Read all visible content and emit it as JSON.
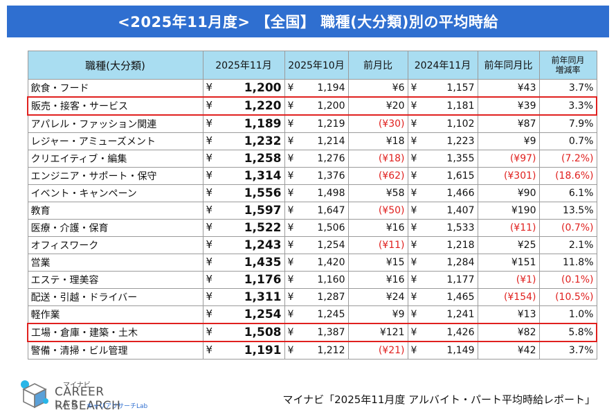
{
  "title": "<2025年11月度> 【全国】 職種(大分類)別の平均時給",
  "headers": {
    "category": "職種(大分類)",
    "nov2025": "2025年11月",
    "oct2025": "2025年10月",
    "mom": "前月比",
    "nov2024": "2024年11月",
    "yoy": "前年同月比",
    "yoy_rate_line1": "前年同月",
    "yoy_rate_line2": "増減率"
  },
  "yen_symbol": "¥",
  "rows": [
    {
      "category": "飲食・フード",
      "nov2025": "1,200",
      "oct2025": "1,194",
      "mom": "¥6",
      "mom_neg": false,
      "nov2024": "1,157",
      "yoy": "¥43",
      "yoy_neg": false,
      "rate": "3.7%",
      "rate_neg": false,
      "highlight": false
    },
    {
      "category": "販売・接客・サービス",
      "nov2025": "1,220",
      "oct2025": "1,200",
      "mom": "¥20",
      "mom_neg": false,
      "nov2024": "1,181",
      "yoy": "¥39",
      "yoy_neg": false,
      "rate": "3.3%",
      "rate_neg": false,
      "highlight": true
    },
    {
      "category": "アパレル・ファッション関連",
      "nov2025": "1,189",
      "oct2025": "1,219",
      "mom": "(¥30)",
      "mom_neg": true,
      "nov2024": "1,102",
      "yoy": "¥87",
      "yoy_neg": false,
      "rate": "7.9%",
      "rate_neg": false,
      "highlight": false
    },
    {
      "category": "レジャー・アミューズメント",
      "nov2025": "1,232",
      "oct2025": "1,214",
      "mom": "¥18",
      "mom_neg": false,
      "nov2024": "1,223",
      "yoy": "¥9",
      "yoy_neg": false,
      "rate": "0.7%",
      "rate_neg": false,
      "highlight": false
    },
    {
      "category": "クリエイティブ・編集",
      "nov2025": "1,258",
      "oct2025": "1,276",
      "mom": "(¥18)",
      "mom_neg": true,
      "nov2024": "1,355",
      "yoy": "(¥97)",
      "yoy_neg": true,
      "rate": "(7.2%)",
      "rate_neg": true,
      "highlight": false
    },
    {
      "category": "エンジニア・サポート・保守",
      "nov2025": "1,314",
      "oct2025": "1,376",
      "mom": "(¥62)",
      "mom_neg": true,
      "nov2024": "1,615",
      "yoy": "(¥301)",
      "yoy_neg": true,
      "rate": "(18.6%)",
      "rate_neg": true,
      "highlight": false
    },
    {
      "category": "イベント・キャンペーン",
      "nov2025": "1,556",
      "oct2025": "1,498",
      "mom": "¥58",
      "mom_neg": false,
      "nov2024": "1,466",
      "yoy": "¥90",
      "yoy_neg": false,
      "rate": "6.1%",
      "rate_neg": false,
      "highlight": false
    },
    {
      "category": "教育",
      "nov2025": "1,597",
      "oct2025": "1,647",
      "mom": "(¥50)",
      "mom_neg": true,
      "nov2024": "1,407",
      "yoy": "¥190",
      "yoy_neg": false,
      "rate": "13.5%",
      "rate_neg": false,
      "highlight": false
    },
    {
      "category": "医療・介護・保育",
      "nov2025": "1,522",
      "oct2025": "1,506",
      "mom": "¥16",
      "mom_neg": false,
      "nov2024": "1,533",
      "yoy": "(¥11)",
      "yoy_neg": true,
      "rate": "(0.7%)",
      "rate_neg": true,
      "highlight": false
    },
    {
      "category": "オフィスワーク",
      "nov2025": "1,243",
      "oct2025": "1,254",
      "mom": "(¥11)",
      "mom_neg": true,
      "nov2024": "1,218",
      "yoy": "¥25",
      "yoy_neg": false,
      "rate": "2.1%",
      "rate_neg": false,
      "highlight": false
    },
    {
      "category": "営業",
      "nov2025": "1,435",
      "oct2025": "1,420",
      "mom": "¥15",
      "mom_neg": false,
      "nov2024": "1,284",
      "yoy": "¥151",
      "yoy_neg": false,
      "rate": "11.8%",
      "rate_neg": false,
      "highlight": false
    },
    {
      "category": "エステ・理美容",
      "nov2025": "1,176",
      "oct2025": "1,160",
      "mom": "¥16",
      "mom_neg": false,
      "nov2024": "1,177",
      "yoy": "(¥1)",
      "yoy_neg": true,
      "rate": "(0.1%)",
      "rate_neg": true,
      "highlight": false
    },
    {
      "category": "配送・引越・ドライバー",
      "nov2025": "1,311",
      "oct2025": "1,287",
      "mom": "¥24",
      "mom_neg": false,
      "nov2024": "1,465",
      "yoy": "(¥154)",
      "yoy_neg": true,
      "rate": "(10.5%)",
      "rate_neg": true,
      "highlight": false
    },
    {
      "category": "軽作業",
      "nov2025": "1,254",
      "oct2025": "1,245",
      "mom": "¥9",
      "mom_neg": false,
      "nov2024": "1,241",
      "yoy": "¥13",
      "yoy_neg": false,
      "rate": "1.0%",
      "rate_neg": false,
      "highlight": false
    },
    {
      "category": "工場・倉庫・建築・土木",
      "nov2025": "1,508",
      "oct2025": "1,387",
      "mom": "¥121",
      "mom_neg": false,
      "nov2024": "1,426",
      "yoy": "¥82",
      "yoy_neg": false,
      "rate": "5.8%",
      "rate_neg": false,
      "highlight": true
    },
    {
      "category": "警備・清掃・ビル管理",
      "nov2025": "1,191",
      "oct2025": "1,212",
      "mom": "(¥21)",
      "mom_neg": true,
      "nov2024": "1,149",
      "yoy": "¥42",
      "yoy_neg": false,
      "rate": "3.7%",
      "rate_neg": false,
      "highlight": false
    }
  ],
  "logo": {
    "top": "マイナビ",
    "main": "CAREER RESEARCH",
    "lab": "LAB",
    "sub": "キャリアリサーチLab"
  },
  "source": "マイナビ「2025年11月度 アルバイト・パート平均時給レポート」",
  "colors": {
    "title_bg": "#2f6fd0",
    "header_bg": "#a9ddf1",
    "negative": "#e0201e",
    "highlight_border": "#e0201e"
  }
}
